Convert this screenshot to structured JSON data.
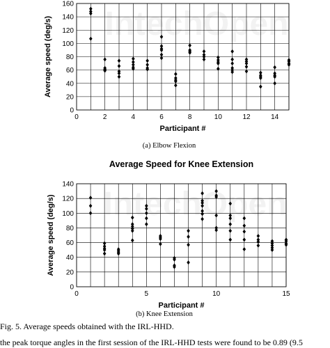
{
  "chart_data": [
    {
      "type": "scatter",
      "title": "",
      "xlabel": "Participant #",
      "ylabel": "Average speed (deg/s)",
      "xlim": [
        0,
        15
      ],
      "ylim": [
        0,
        160
      ],
      "xticks": [
        0,
        2,
        4,
        6,
        8,
        10,
        12,
        14
      ],
      "yticks": [
        0,
        20,
        40,
        60,
        80,
        100,
        120,
        140,
        160
      ],
      "grid": true,
      "caption": "(a)  Elbow Flexion",
      "series": [
        {
          "values": [
            [
              1,
              152
            ],
            [
              1,
              148
            ],
            [
              1,
              145
            ],
            [
              1,
              107
            ],
            [
              2,
              76
            ],
            [
              2,
              63
            ],
            [
              2,
              61
            ],
            [
              2,
              60
            ],
            [
              2,
              59
            ],
            [
              3,
              74
            ],
            [
              3,
              66
            ],
            [
              3,
              58
            ],
            [
              3,
              55
            ],
            [
              3,
              50
            ],
            [
              4,
              77
            ],
            [
              4,
              72
            ],
            [
              4,
              68
            ],
            [
              4,
              64
            ],
            [
              4,
              62
            ],
            [
              5,
              74
            ],
            [
              5,
              68
            ],
            [
              5,
              63
            ],
            [
              5,
              61
            ],
            [
              6,
              110
            ],
            [
              6,
              96
            ],
            [
              6,
              92
            ],
            [
              6,
              90
            ],
            [
              6,
              83
            ],
            [
              6,
              78
            ],
            [
              7,
              54
            ],
            [
              7,
              48
            ],
            [
              7,
              45
            ],
            [
              7,
              43
            ],
            [
              7,
              37
            ],
            [
              8,
              97
            ],
            [
              8,
              90
            ],
            [
              8,
              88
            ],
            [
              8,
              86
            ],
            [
              9,
              88
            ],
            [
              9,
              83
            ],
            [
              9,
              80
            ],
            [
              9,
              76
            ],
            [
              10,
              79
            ],
            [
              10,
              75
            ],
            [
              10,
              72
            ],
            [
              10,
              70
            ],
            [
              10,
              62
            ],
            [
              11,
              88
            ],
            [
              11,
              76
            ],
            [
              11,
              70
            ],
            [
              11,
              63
            ],
            [
              11,
              60
            ],
            [
              11,
              57
            ],
            [
              12,
              76
            ],
            [
              12,
              73
            ],
            [
              12,
              70
            ],
            [
              12,
              65
            ],
            [
              12,
              58
            ],
            [
              13,
              56
            ],
            [
              13,
              52
            ],
            [
              13,
              50
            ],
            [
              13,
              48
            ],
            [
              13,
              35
            ],
            [
              14,
              64
            ],
            [
              14,
              55
            ],
            [
              14,
              52
            ],
            [
              14,
              50
            ],
            [
              14,
              40
            ],
            [
              15,
              75
            ],
            [
              15,
              73
            ],
            [
              15,
              70
            ],
            [
              15,
              68
            ]
          ]
        }
      ]
    },
    {
      "type": "scatter",
      "title": "Average Speed for Knee Extension",
      "xlabel": "Participant #",
      "ylabel": "Average speed (deg/s)",
      "xlim": [
        0,
        15
      ],
      "ylim": [
        0,
        140
      ],
      "xticks": [
        0,
        5,
        10,
        15
      ],
      "yticks": [
        0,
        20,
        40,
        60,
        80,
        100,
        120,
        140
      ],
      "grid": true,
      "caption": "(b)  Knee Extension",
      "series": [
        {
          "values": [
            [
              1,
              121
            ],
            [
              1,
              110
            ],
            [
              1,
              100
            ],
            [
              2,
              59
            ],
            [
              2,
              55
            ],
            [
              2,
              52
            ],
            [
              2,
              50
            ],
            [
              2,
              45
            ],
            [
              3,
              51
            ],
            [
              3,
              49
            ],
            [
              3,
              47
            ],
            [
              3,
              45
            ],
            [
              4,
              94
            ],
            [
              4,
              85
            ],
            [
              4,
              82
            ],
            [
              4,
              79
            ],
            [
              4,
              76
            ],
            [
              4,
              63
            ],
            [
              5,
              110
            ],
            [
              5,
              106
            ],
            [
              5,
              100
            ],
            [
              5,
              93
            ],
            [
              5,
              85
            ],
            [
              6,
              69
            ],
            [
              6,
              67
            ],
            [
              6,
              65
            ],
            [
              6,
              58
            ],
            [
              7,
              39
            ],
            [
              7,
              37
            ],
            [
              7,
              29
            ],
            [
              7,
              27
            ],
            [
              8,
              76
            ],
            [
              8,
              68
            ],
            [
              8,
              57
            ],
            [
              8,
              33
            ],
            [
              9,
              127
            ],
            [
              9,
              117
            ],
            [
              9,
              114
            ],
            [
              9,
              110
            ],
            [
              9,
              103
            ],
            [
              9,
              99
            ],
            [
              9,
              92
            ],
            [
              10,
              130
            ],
            [
              10,
              124
            ],
            [
              10,
              122
            ],
            [
              10,
              97
            ],
            [
              10,
              80
            ],
            [
              10,
              77
            ],
            [
              11,
              113
            ],
            [
              11,
              97
            ],
            [
              11,
              93
            ],
            [
              11,
              85
            ],
            [
              11,
              76
            ],
            [
              11,
              64
            ],
            [
              12,
              93
            ],
            [
              12,
              83
            ],
            [
              12,
              75
            ],
            [
              12,
              64
            ],
            [
              12,
              51
            ],
            [
              13,
              69
            ],
            [
              13,
              64
            ],
            [
              13,
              61
            ],
            [
              13,
              56
            ],
            [
              14,
              62
            ],
            [
              14,
              59
            ],
            [
              14,
              56
            ],
            [
              14,
              53
            ],
            [
              14,
              50
            ],
            [
              15,
              64
            ],
            [
              15,
              62
            ],
            [
              15,
              59
            ],
            [
              15,
              57
            ]
          ]
        }
      ]
    }
  ],
  "figure_caption": "Fig. 5. Average speeds obtained with the IRL-HHD.",
  "body_text": "the peak torque angles in the first session of the IRL-HHD tests were found to be 0.89 (9.5"
}
